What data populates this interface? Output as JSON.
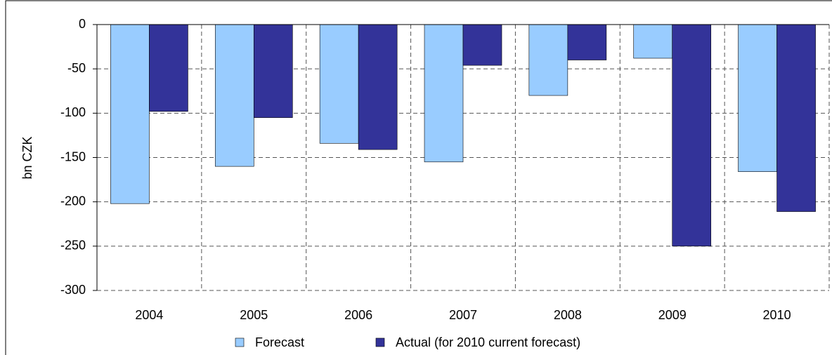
{
  "chart_data": {
    "type": "bar",
    "y_label": "bn CZK",
    "categories": [
      "2004",
      "2005",
      "2006",
      "2007",
      "2008",
      "2009",
      "2010"
    ],
    "series": [
      {
        "name": "Forecast",
        "color": "#99ccff",
        "values": [
          -202,
          -160,
          -134,
          -155,
          -80,
          -38,
          -166
        ]
      },
      {
        "name": "Actual (for 2010 current forecast)",
        "color": "#333399",
        "values": [
          -98,
          -105,
          -141,
          -46,
          -40,
          -250,
          -211
        ]
      }
    ],
    "ylim": [
      -300,
      0
    ],
    "yticks": [
      0,
      -50,
      -100,
      -150,
      -200,
      -250,
      -300
    ],
    "grid": true,
    "legend": "bottom"
  }
}
